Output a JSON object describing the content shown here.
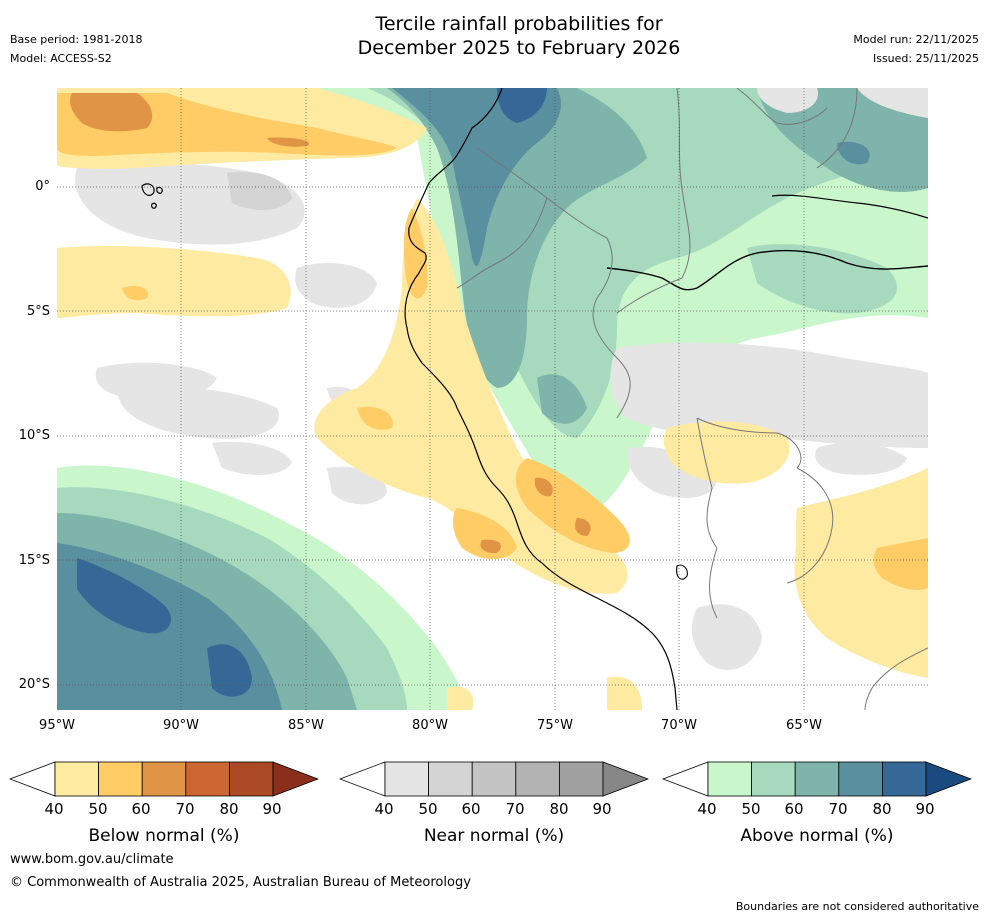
{
  "header": {
    "title_line1": "Tercile rainfall probabilities for",
    "title_line2": "December 2025 to February 2026",
    "base_period": "Base period: 1981-2018",
    "model": "Model: ACCESS-S2",
    "model_run": "Model run: 22/11/2025",
    "issued": "Issued: 25/11/2025"
  },
  "map": {
    "lat_labels": [
      "0°",
      "5°S",
      "10°S",
      "15°S",
      "20°S"
    ],
    "lon_labels": [
      "95°W",
      "90°W",
      "85°W",
      "80°W",
      "75°W",
      "70°W",
      "65°W"
    ]
  },
  "legends": {
    "below": {
      "title": "Below normal (%)",
      "ticks": [
        "40",
        "50",
        "60",
        "70",
        "80",
        "90"
      ],
      "colors": [
        "#ffffff",
        "#ffeaa1",
        "#ffcc66",
        "#e09446",
        "#cc6633",
        "#ad4a26",
        "#8b2e1a"
      ]
    },
    "near": {
      "title": "Near normal (%)",
      "ticks": [
        "40",
        "50",
        "60",
        "70",
        "80",
        "90"
      ],
      "colors": [
        "#ffffff",
        "#e5e5e5",
        "#d4d4d4",
        "#c4c4c4",
        "#b3b3b3",
        "#a0a0a0",
        "#878787"
      ]
    },
    "above": {
      "title": "Above normal (%)",
      "ticks": [
        "40",
        "50",
        "60",
        "70",
        "80",
        "90"
      ],
      "colors": [
        "#ffffff",
        "#c9f7cb",
        "#a6d9bd",
        "#7fb4ab",
        "#5a8fa0",
        "#356896",
        "#1a4a80"
      ]
    }
  },
  "footer": {
    "url": "www.bom.gov.au/climate",
    "copyright": "© Commonwealth of Australia 2025, Australian Bureau of Meteorology",
    "disclaimer": "Boundaries are not considered authoritative"
  }
}
